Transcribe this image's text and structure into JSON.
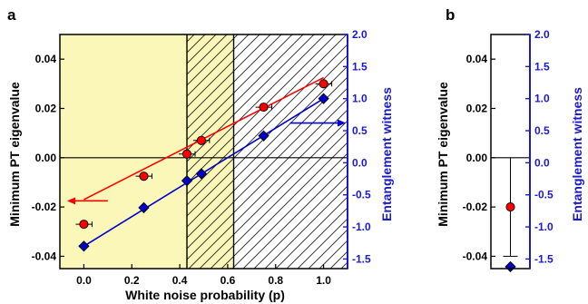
{
  "chart_data": [
    {
      "panel": "a",
      "type": "scatter",
      "xlabel": "White noise probability (p)",
      "ylabel": "Minimum PT eigenvalue",
      "y2label": "Entanglement witness",
      "xlim": [
        -0.1,
        1.1
      ],
      "ylim": [
        -0.045,
        0.05
      ],
      "y2lim": [
        -1.65,
        2.0
      ],
      "x_ticks": [
        "0.0",
        "0.2",
        "0.4",
        "0.6",
        "0.8",
        "1.0"
      ],
      "y_ticks": [
        "-0.04",
        "-0.02",
        "0.00",
        "0.02",
        "0.04"
      ],
      "y2_ticks": [
        "-1.5",
        "-1.0",
        "-0.5",
        "0.0",
        "0.5",
        "1.0",
        "1.5",
        "2.0"
      ],
      "regions": [
        {
          "from": -0.1,
          "to": 0.43,
          "fill": "#fbf7b8",
          "hatch": false
        },
        {
          "from": 0.43,
          "to": 0.625,
          "fill": "#fbf7b8",
          "hatch": true
        },
        {
          "from": 0.625,
          "to": 1.1,
          "fill": "#ffffff",
          "hatch": true
        }
      ],
      "series": [
        {
          "axis": "left",
          "color": "#ff0000",
          "marker": "circle",
          "x": [
            0.0,
            0.25,
            0.43,
            0.49,
            0.75,
            1.0
          ],
          "y": [
            -0.027,
            -0.0075,
            0.0015,
            0.007,
            0.0205,
            0.03
          ],
          "fit": {
            "x": [
              0.0,
              1.0
            ],
            "y": [
              -0.017,
              0.0325
            ]
          }
        },
        {
          "axis": "right",
          "color": "#0000cc",
          "marker": "diamond",
          "x": [
            0.0,
            0.25,
            0.43,
            0.49,
            0.75,
            1.0
          ],
          "y": [
            -1.3,
            -0.7,
            -0.28,
            -0.17,
            0.42,
            1.0
          ],
          "fit": {
            "x": [
              0.0,
              1.0
            ],
            "y": [
              -1.3,
              1.0
            ]
          }
        }
      ],
      "zero_line": 0.0,
      "arrows": [
        {
          "axis": "left",
          "color": "#ff0000",
          "direction": "left",
          "y": -0.0175,
          "x_from": 0.1
        },
        {
          "axis": "right",
          "color": "#0000cc",
          "direction": "right",
          "y": 0.62,
          "x_from": 0.86
        }
      ]
    },
    {
      "panel": "b",
      "type": "scatter",
      "ylabel": "Minimum PT eigenvalue",
      "y2label": "Entanglement witness",
      "ylim": [
        -0.045,
        0.05
      ],
      "y2lim": [
        -1.65,
        2.0
      ],
      "y_ticks": [
        "-0.04",
        "-0.02",
        "0.00",
        "0.02",
        "0.04"
      ],
      "y2_ticks": [
        "-1.5",
        "-1.0",
        "-0.5",
        "0.0",
        "0.5",
        "1.0",
        "1.5",
        "2.0"
      ],
      "zero_line": 0.0,
      "series": [
        {
          "axis": "left",
          "color": "#ff0000",
          "marker": "circle",
          "y": [
            -0.02
          ],
          "err_low": [
            -0.04
          ],
          "err_high": [
            0.0
          ]
        },
        {
          "axis": "right",
          "color": "#0000cc",
          "marker": "diamond",
          "y": [
            -1.62
          ]
        }
      ]
    }
  ]
}
